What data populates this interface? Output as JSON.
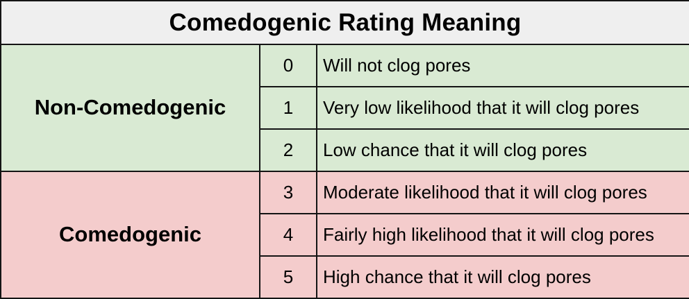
{
  "title": "Comedogenic Rating Meaning",
  "colors": {
    "header_bg": "#efefef",
    "non_comedogenic_bg": "#d9ead3",
    "comedogenic_bg": "#f4cccc",
    "border": "#141414",
    "text": "#000000"
  },
  "groups": [
    {
      "label": "Non-Comedogenic",
      "rows": [
        {
          "rating": "0",
          "description": "Will not clog pores"
        },
        {
          "rating": "1",
          "description": "Very low likelihood that it will clog pores"
        },
        {
          "rating": "2",
          "description": "Low chance that it will clog pores"
        }
      ]
    },
    {
      "label": "Comedogenic",
      "rows": [
        {
          "rating": "3",
          "description": "Moderate likelihood that it will clog pores"
        },
        {
          "rating": "4",
          "description": "Fairly high likelihood that it will clog pores"
        },
        {
          "rating": "5",
          "description": "High chance that it will clog pores"
        }
      ]
    }
  ]
}
